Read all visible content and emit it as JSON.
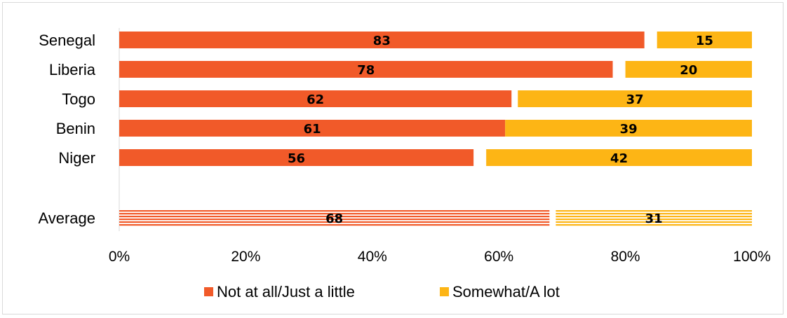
{
  "chart_data": {
    "type": "bar",
    "orientation": "horizontal",
    "stacked": true,
    "categories": [
      "Senegal",
      "Liberia",
      "Togo",
      "Benin",
      "Niger",
      "Average"
    ],
    "series": [
      {
        "name": "Not at all/Just a little",
        "color": "#F15A29",
        "values": [
          83,
          78,
          62,
          61,
          56,
          68
        ]
      },
      {
        "name": "Somewhat/A lot",
        "color": "#FDB515",
        "values": [
          15,
          20,
          37,
          39,
          42,
          31
        ]
      }
    ],
    "highlighted_category": "Average",
    "highlight_pattern": "horizontal-stripes",
    "xlim": [
      0,
      100
    ],
    "xticks": [
      "0%",
      "20%",
      "40%",
      "60%",
      "80%",
      "100%"
    ],
    "grid": false,
    "legend_position": "bottom"
  }
}
